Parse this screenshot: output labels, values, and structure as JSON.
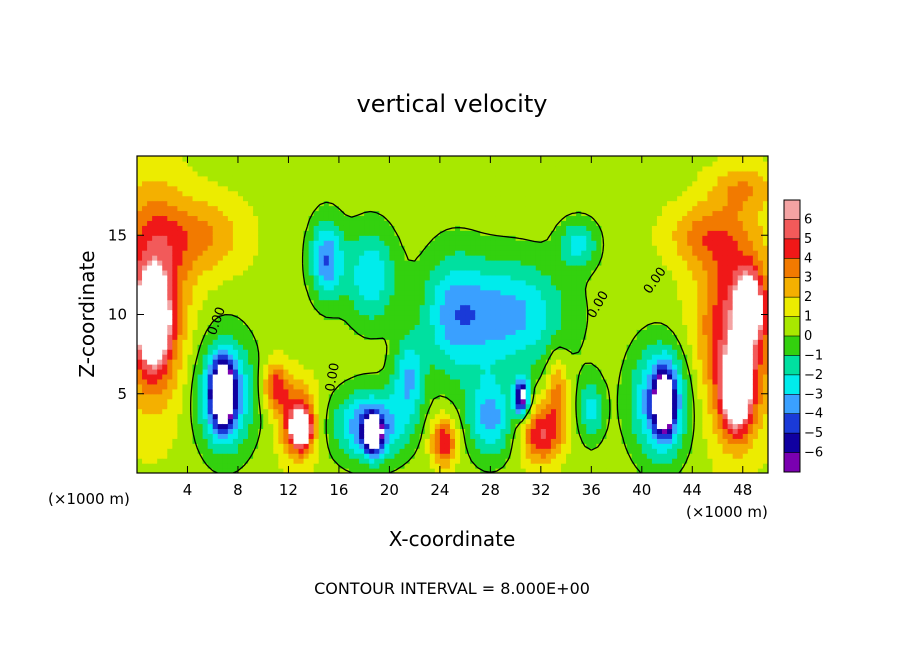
{
  "chart_data": {
    "type": "heatmap",
    "title": "vertical velocity",
    "xlabel": "X-coordinate",
    "ylabel": "Z-coordinate",
    "x_unit": "(×1000 m)",
    "x_unit_right": "(×1000 m)",
    "xlim": [
      0,
      50
    ],
    "ylim": [
      0,
      20
    ],
    "x_ticks": [
      4,
      8,
      12,
      16,
      20,
      24,
      28,
      32,
      36,
      40,
      44,
      48
    ],
    "y_ticks": [
      5,
      10,
      15
    ],
    "grid": false,
    "footer": "CONTOUR INTERVAL = 8.000E+00",
    "contour_labels": [
      "0.00",
      "0.00",
      "0.00",
      "0.00"
    ],
    "colorbar": {
      "ticks": [
        6,
        5,
        4,
        3,
        2,
        1,
        0,
        -1,
        -2,
        -3,
        -4,
        -5,
        -6
      ],
      "colors": [
        "#f4a3a3",
        "#f25a5a",
        "#f01818",
        "#f27a00",
        "#f4b000",
        "#ecec00",
        "#a8e800",
        "#33d10e",
        "#00e0a0",
        "#00ecec",
        "#3aa0ff",
        "#1a3ad8",
        "#1000a0",
        "#7a00b0"
      ]
    },
    "features": [
      {
        "x": 1.2,
        "z": 11.0,
        "rx": 2.6,
        "rz": 6.5,
        "w": 5.0
      },
      {
        "x": 1.3,
        "z": 9.5,
        "rx": 1.2,
        "rz": 2.6,
        "w": 7.0
      },
      {
        "x": 5.0,
        "z": 15.0,
        "rx": 3.5,
        "rz": 2.5,
        "w": 2.5
      },
      {
        "x": 7.0,
        "z": 5.0,
        "rx": 2.2,
        "rz": 3.5,
        "w": -5.0
      },
      {
        "x": 6.8,
        "z": 5.0,
        "rx": 0.9,
        "rz": 2.0,
        "w": -7.0
      },
      {
        "x": 11.0,
        "z": 5.5,
        "rx": 1.0,
        "rz": 1.5,
        "w": 4.0
      },
      {
        "x": 12.8,
        "z": 3.2,
        "rx": 1.4,
        "rz": 2.3,
        "w": 5.0
      },
      {
        "x": 13.0,
        "z": 2.8,
        "rx": 0.7,
        "rz": 1.0,
        "w": 7.0
      },
      {
        "x": 15.0,
        "z": 13.5,
        "rx": 1.3,
        "rz": 2.5,
        "w": -4.5
      },
      {
        "x": 18.5,
        "z": 3.0,
        "rx": 2.8,
        "rz": 2.2,
        "w": -5.0
      },
      {
        "x": 18.7,
        "z": 2.5,
        "rx": 0.7,
        "rz": 1.2,
        "w": -7.0
      },
      {
        "x": 18.5,
        "z": 12.5,
        "rx": 2.0,
        "rz": 3.0,
        "w": -3.5
      },
      {
        "x": 21.5,
        "z": 6.0,
        "rx": 1.2,
        "rz": 2.5,
        "w": -3.5
      },
      {
        "x": 24.3,
        "z": 2.0,
        "rx": 1.0,
        "rz": 1.5,
        "w": 4.5
      },
      {
        "x": 25.0,
        "z": 10.0,
        "rx": 2.5,
        "rz": 4.0,
        "w": -3.0
      },
      {
        "x": 28.0,
        "z": 3.5,
        "rx": 1.8,
        "rz": 2.5,
        "w": -4.0
      },
      {
        "x": 29.5,
        "z": 10.0,
        "rx": 4.5,
        "rz": 3.5,
        "w": -4.0
      },
      {
        "x": 30.5,
        "z": 4.8,
        "rx": 0.6,
        "rz": 1.2,
        "w": -7.0
      },
      {
        "x": 32.0,
        "z": 2.5,
        "rx": 1.5,
        "rz": 1.8,
        "w": 4.5
      },
      {
        "x": 33.3,
        "z": 5.0,
        "rx": 0.8,
        "rz": 2.5,
        "w": 3.0
      },
      {
        "x": 35.0,
        "z": 14.5,
        "rx": 1.5,
        "rz": 1.5,
        "w": -3.0
      },
      {
        "x": 36.0,
        "z": 4.0,
        "rx": 1.0,
        "rz": 2.0,
        "w": -3.0
      },
      {
        "x": 41.5,
        "z": 4.5,
        "rx": 2.3,
        "rz": 3.5,
        "w": -5.0
      },
      {
        "x": 41.8,
        "z": 4.5,
        "rx": 0.8,
        "rz": 2.0,
        "w": -7.0
      },
      {
        "x": 47.5,
        "z": 9.0,
        "rx": 3.0,
        "rz": 6.0,
        "w": 5.0
      },
      {
        "x": 47.5,
        "z": 5.0,
        "rx": 1.2,
        "rz": 2.5,
        "w": 7.0
      },
      {
        "x": 48.5,
        "z": 10.5,
        "rx": 1.0,
        "rz": 2.0,
        "w": 7.0
      },
      {
        "x": 45.0,
        "z": 15.0,
        "rx": 3.0,
        "rz": 2.0,
        "w": 2.5
      },
      {
        "x": 48.0,
        "z": 18.0,
        "rx": 2.5,
        "rz": 1.5,
        "w": 2.0
      }
    ]
  }
}
